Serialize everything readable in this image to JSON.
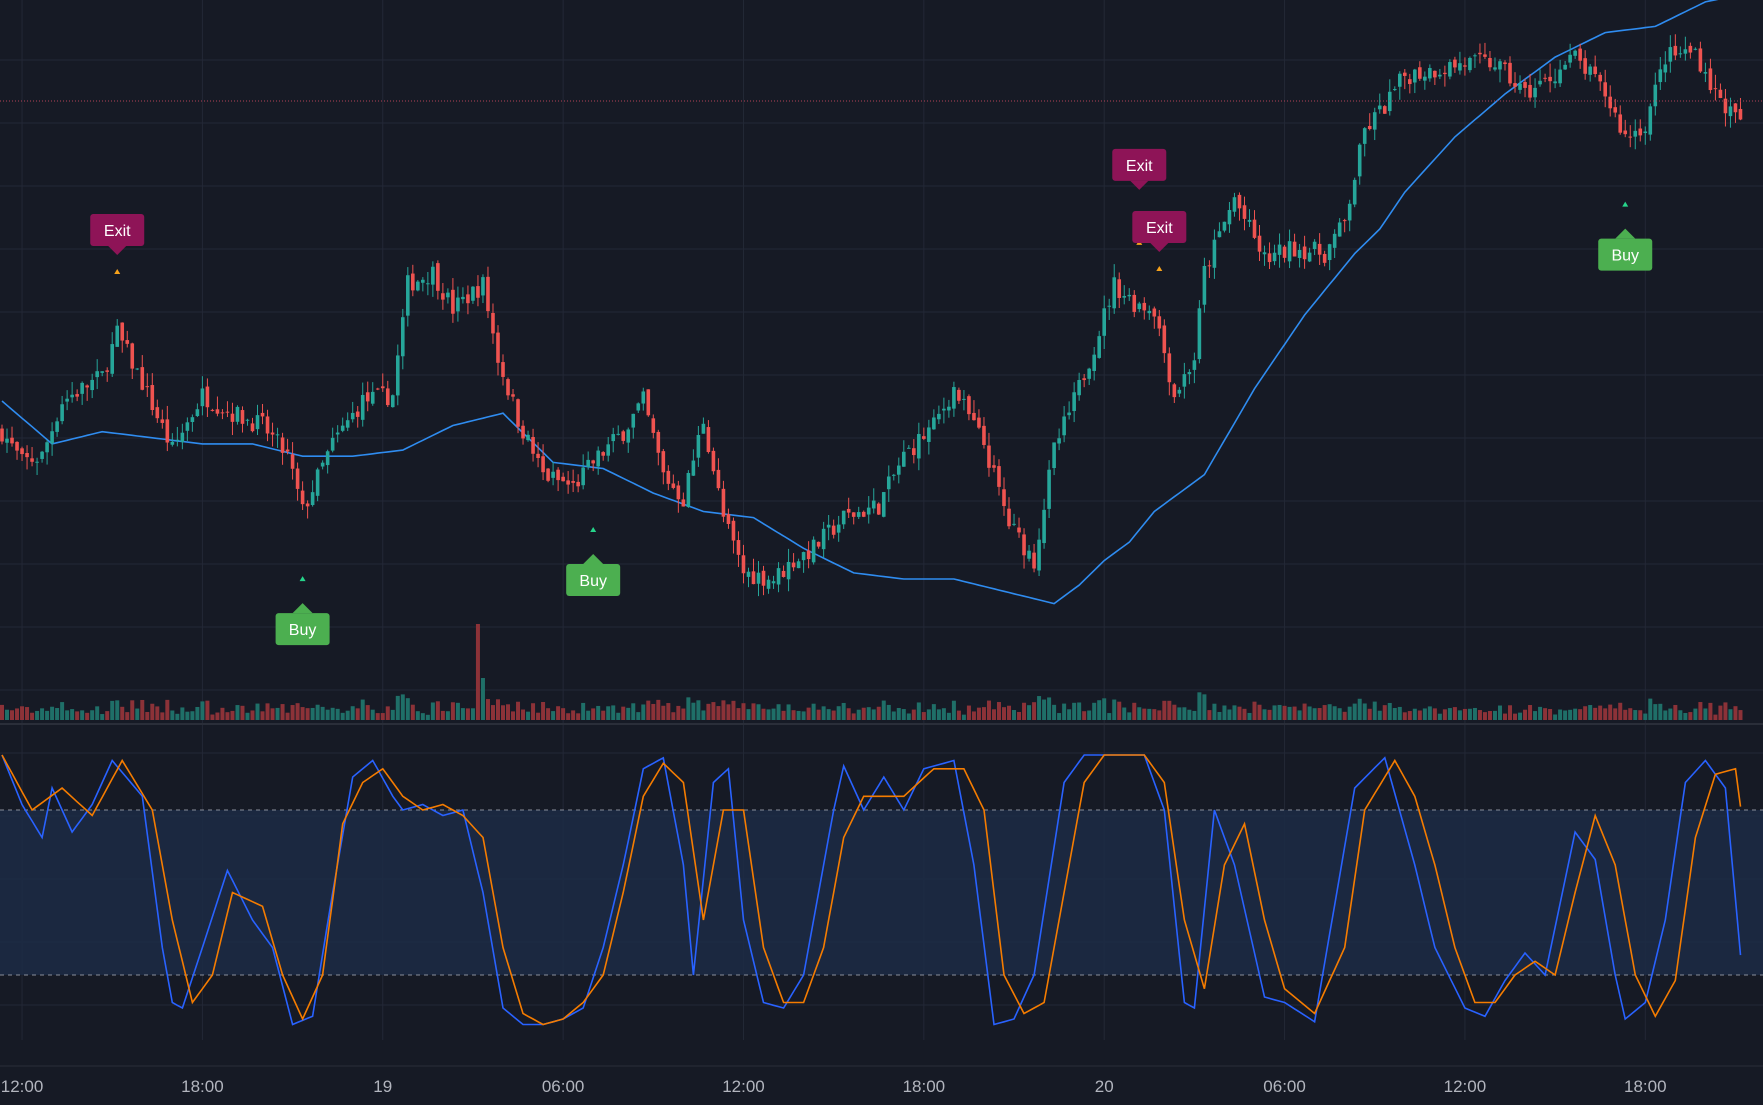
{
  "theme": {
    "background": "#161a25",
    "grid": "#232836",
    "up_color": "#26a69a",
    "down_color": "#ef5350",
    "up_volume": "#1f6f68",
    "down_volume": "#8c3238",
    "ma_color": "#2f8cf0",
    "k_color": "#2962ff",
    "d_color": "#f57c00",
    "band_fill": "#1c2b45",
    "buy_color": "#4caf50",
    "exit_color": "#8e1457",
    "price_line": "#b24257"
  },
  "x_axis": {
    "ticks": [
      {
        "label": "12:00",
        "bar": 4
      },
      {
        "label": "18:00",
        "bar": 40
      },
      {
        "label": "19",
        "bar": 76
      },
      {
        "label": "06:00",
        "bar": 112
      },
      {
        "label": "12:00",
        "bar": 148
      },
      {
        "label": "18:00",
        "bar": 184
      },
      {
        "label": "20",
        "bar": 220
      },
      {
        "label": "06:00",
        "bar": 256
      },
      {
        "label": "12:00",
        "bar": 292
      },
      {
        "label": "18:00",
        "bar": 328
      }
    ]
  },
  "signals": [
    {
      "label": "Exit",
      "type": "exit",
      "bar": 23
    },
    {
      "label": "Buy",
      "type": "buy",
      "bar": 60
    },
    {
      "label": "Buy",
      "type": "buy",
      "bar": 118
    },
    {
      "label": "Exit",
      "type": "exit",
      "bar": 227
    },
    {
      "label": "Exit",
      "type": "exit",
      "bar": 231
    },
    {
      "label": "Buy",
      "type": "buy",
      "bar": 324
    }
  ],
  "chart_data": [
    {
      "type": "candlestick",
      "ylim": [
        0,
        100
      ],
      "grid": true,
      "close_path": [
        [
          0,
          31
        ],
        [
          4,
          26
        ],
        [
          8,
          27
        ],
        [
          12,
          36
        ],
        [
          20,
          40
        ],
        [
          23,
          47
        ],
        [
          28,
          39
        ],
        [
          34,
          28
        ],
        [
          40,
          37
        ],
        [
          46,
          34
        ],
        [
          52,
          32
        ],
        [
          57,
          27
        ],
        [
          60,
          18
        ],
        [
          66,
          29
        ],
        [
          72,
          36
        ],
        [
          78,
          37
        ],
        [
          81,
          55
        ],
        [
          86,
          57
        ],
        [
          90,
          51
        ],
        [
          96,
          55
        ],
        [
          99,
          43
        ],
        [
          103,
          33
        ],
        [
          108,
          24
        ],
        [
          114,
          22
        ],
        [
          118,
          26
        ],
        [
          124,
          31
        ],
        [
          128,
          36
        ],
        [
          132,
          24
        ],
        [
          136,
          20
        ],
        [
          140,
          33
        ],
        [
          144,
          17
        ],
        [
          148,
          8
        ],
        [
          154,
          7
        ],
        [
          158,
          10
        ],
        [
          162,
          12
        ],
        [
          168,
          17
        ],
        [
          175,
          19
        ],
        [
          180,
          27
        ],
        [
          186,
          32
        ],
        [
          190,
          38
        ],
        [
          196,
          29
        ],
        [
          201,
          16
        ],
        [
          206,
          10
        ],
        [
          210,
          28
        ],
        [
          214,
          36
        ],
        [
          218,
          45
        ],
        [
          222,
          55
        ],
        [
          226,
          52
        ],
        [
          230,
          51
        ],
        [
          234,
          37
        ],
        [
          238,
          43
        ],
        [
          240,
          57
        ],
        [
          246,
          69
        ],
        [
          252,
          59
        ],
        [
          258,
          61
        ],
        [
          264,
          60
        ],
        [
          268,
          65
        ],
        [
          272,
          80
        ],
        [
          276,
          84
        ],
        [
          280,
          89
        ],
        [
          286,
          90
        ],
        [
          292,
          91
        ],
        [
          298,
          91
        ],
        [
          304,
          86
        ],
        [
          308,
          88
        ],
        [
          314,
          92
        ],
        [
          320,
          86
        ],
        [
          324,
          79
        ],
        [
          328,
          81
        ],
        [
          332,
          92
        ],
        [
          338,
          93
        ],
        [
          342,
          86
        ],
        [
          346,
          82
        ]
      ],
      "ma_path": [
        [
          0,
          36
        ],
        [
          10,
          29
        ],
        [
          20,
          31
        ],
        [
          30,
          30
        ],
        [
          40,
          29
        ],
        [
          50,
          29
        ],
        [
          60,
          27
        ],
        [
          70,
          27
        ],
        [
          80,
          28
        ],
        [
          90,
          32
        ],
        [
          100,
          34
        ],
        [
          110,
          26
        ],
        [
          120,
          25
        ],
        [
          130,
          21
        ],
        [
          140,
          18
        ],
        [
          150,
          17
        ],
        [
          160,
          12
        ],
        [
          170,
          8
        ],
        [
          180,
          7
        ],
        [
          190,
          7
        ],
        [
          200,
          5
        ],
        [
          210,
          3
        ],
        [
          215,
          6
        ],
        [
          220,
          10
        ],
        [
          225,
          13
        ],
        [
          230,
          18
        ],
        [
          235,
          21
        ],
        [
          240,
          24
        ],
        [
          245,
          31
        ],
        [
          250,
          38
        ],
        [
          255,
          44
        ],
        [
          260,
          50
        ],
        [
          265,
          55
        ],
        [
          270,
          60
        ],
        [
          275,
          64
        ],
        [
          280,
          70
        ],
        [
          290,
          79
        ],
        [
          300,
          86
        ],
        [
          310,
          92
        ],
        [
          320,
          96
        ],
        [
          330,
          97
        ],
        [
          340,
          101
        ],
        [
          346,
          102
        ]
      ],
      "volume_spike_bar": 95,
      "volume_ylim": [
        0,
        100
      ]
    },
    {
      "type": "line",
      "ylim": [
        0,
        100
      ],
      "upper_band": 80,
      "lower_band": 20,
      "series": [
        {
          "key": "k",
          "points": [
            [
              0,
              100
            ],
            [
              4,
              82
            ],
            [
              8,
              70
            ],
            [
              10,
              88
            ],
            [
              14,
              72
            ],
            [
              18,
              82
            ],
            [
              22,
              98
            ],
            [
              28,
              85
            ],
            [
              32,
              30
            ],
            [
              34,
              10
            ],
            [
              36,
              8
            ],
            [
              40,
              30
            ],
            [
              45,
              58
            ],
            [
              50,
              40
            ],
            [
              54,
              30
            ],
            [
              58,
              2
            ],
            [
              62,
              5
            ],
            [
              66,
              50
            ],
            [
              70,
              92
            ],
            [
              74,
              98
            ],
            [
              78,
              85
            ],
            [
              80,
              80
            ],
            [
              84,
              82
            ],
            [
              88,
              78
            ],
            [
              92,
              80
            ],
            [
              96,
              50
            ],
            [
              100,
              8
            ],
            [
              104,
              2
            ],
            [
              108,
              2
            ],
            [
              112,
              4
            ],
            [
              116,
              8
            ],
            [
              120,
              30
            ],
            [
              124,
              60
            ],
            [
              128,
              95
            ],
            [
              132,
              99
            ],
            [
              136,
              60
            ],
            [
              138,
              20
            ],
            [
              142,
              90
            ],
            [
              145,
              95
            ],
            [
              148,
              40
            ],
            [
              152,
              10
            ],
            [
              156,
              8
            ],
            [
              160,
              20
            ],
            [
              166,
              80
            ],
            [
              168,
              96
            ],
            [
              172,
              80
            ],
            [
              176,
              92
            ],
            [
              180,
              80
            ],
            [
              184,
              95
            ],
            [
              190,
              98
            ],
            [
              194,
              60
            ],
            [
              198,
              2
            ],
            [
              202,
              4
            ],
            [
              206,
              20
            ],
            [
              212,
              90
            ],
            [
              216,
              100
            ],
            [
              220,
              100
            ],
            [
              228,
              100
            ],
            [
              232,
              80
            ],
            [
              236,
              10
            ],
            [
              238,
              8
            ],
            [
              242,
              80
            ],
            [
              246,
              60
            ],
            [
              252,
              12
            ],
            [
              256,
              10
            ],
            [
              262,
              3
            ],
            [
              270,
              88
            ],
            [
              276,
              99
            ],
            [
              282,
              60
            ],
            [
              286,
              30
            ],
            [
              292,
              8
            ],
            [
              296,
              5
            ],
            [
              300,
              18
            ],
            [
              304,
              28
            ],
            [
              308,
              20
            ],
            [
              314,
              72
            ],
            [
              318,
              62
            ],
            [
              322,
              20
            ],
            [
              324,
              4
            ],
            [
              328,
              10
            ],
            [
              332,
              40
            ],
            [
              336,
              90
            ],
            [
              340,
              98
            ],
            [
              344,
              88
            ],
            [
              348,
              7
            ]
          ]
        },
        {
          "key": "d",
          "points": [
            [
              0,
              100
            ],
            [
              6,
              80
            ],
            [
              12,
              88
            ],
            [
              18,
              78
            ],
            [
              24,
              98
            ],
            [
              30,
              80
            ],
            [
              34,
              40
            ],
            [
              38,
              10
            ],
            [
              42,
              20
            ],
            [
              46,
              50
            ],
            [
              52,
              45
            ],
            [
              56,
              20
            ],
            [
              60,
              4
            ],
            [
              64,
              20
            ],
            [
              68,
              75
            ],
            [
              72,
              90
            ],
            [
              76,
              95
            ],
            [
              80,
              85
            ],
            [
              84,
              80
            ],
            [
              88,
              82
            ],
            [
              92,
              78
            ],
            [
              96,
              70
            ],
            [
              100,
              30
            ],
            [
              104,
              6
            ],
            [
              108,
              2
            ],
            [
              112,
              4
            ],
            [
              116,
              10
            ],
            [
              120,
              20
            ],
            [
              124,
              50
            ],
            [
              128,
              85
            ],
            [
              132,
              97
            ],
            [
              136,
              90
            ],
            [
              140,
              40
            ],
            [
              144,
              80
            ],
            [
              148,
              80
            ],
            [
              152,
              30
            ],
            [
              156,
              10
            ],
            [
              160,
              10
            ],
            [
              164,
              30
            ],
            [
              168,
              70
            ],
            [
              172,
              85
            ],
            [
              176,
              85
            ],
            [
              180,
              85
            ],
            [
              186,
              95
            ],
            [
              192,
              95
            ],
            [
              196,
              80
            ],
            [
              200,
              20
            ],
            [
              204,
              6
            ],
            [
              208,
              10
            ],
            [
              212,
              50
            ],
            [
              216,
              90
            ],
            [
              220,
              100
            ],
            [
              228,
              100
            ],
            [
              232,
              90
            ],
            [
              236,
              40
            ],
            [
              240,
              15
            ],
            [
              244,
              60
            ],
            [
              248,
              75
            ],
            [
              252,
              40
            ],
            [
              256,
              15
            ],
            [
              262,
              6
            ],
            [
              268,
              30
            ],
            [
              272,
              80
            ],
            [
              278,
              98
            ],
            [
              282,
              85
            ],
            [
              286,
              60
            ],
            [
              290,
              30
            ],
            [
              294,
              10
            ],
            [
              298,
              10
            ],
            [
              302,
              20
            ],
            [
              306,
              25
            ],
            [
              310,
              20
            ],
            [
              314,
              50
            ],
            [
              318,
              78
            ],
            [
              322,
              60
            ],
            [
              326,
              20
            ],
            [
              330,
              5
            ],
            [
              334,
              18
            ],
            [
              338,
              70
            ],
            [
              342,
              93
            ],
            [
              346,
              95
            ],
            [
              350,
              40
            ]
          ]
        }
      ]
    }
  ]
}
